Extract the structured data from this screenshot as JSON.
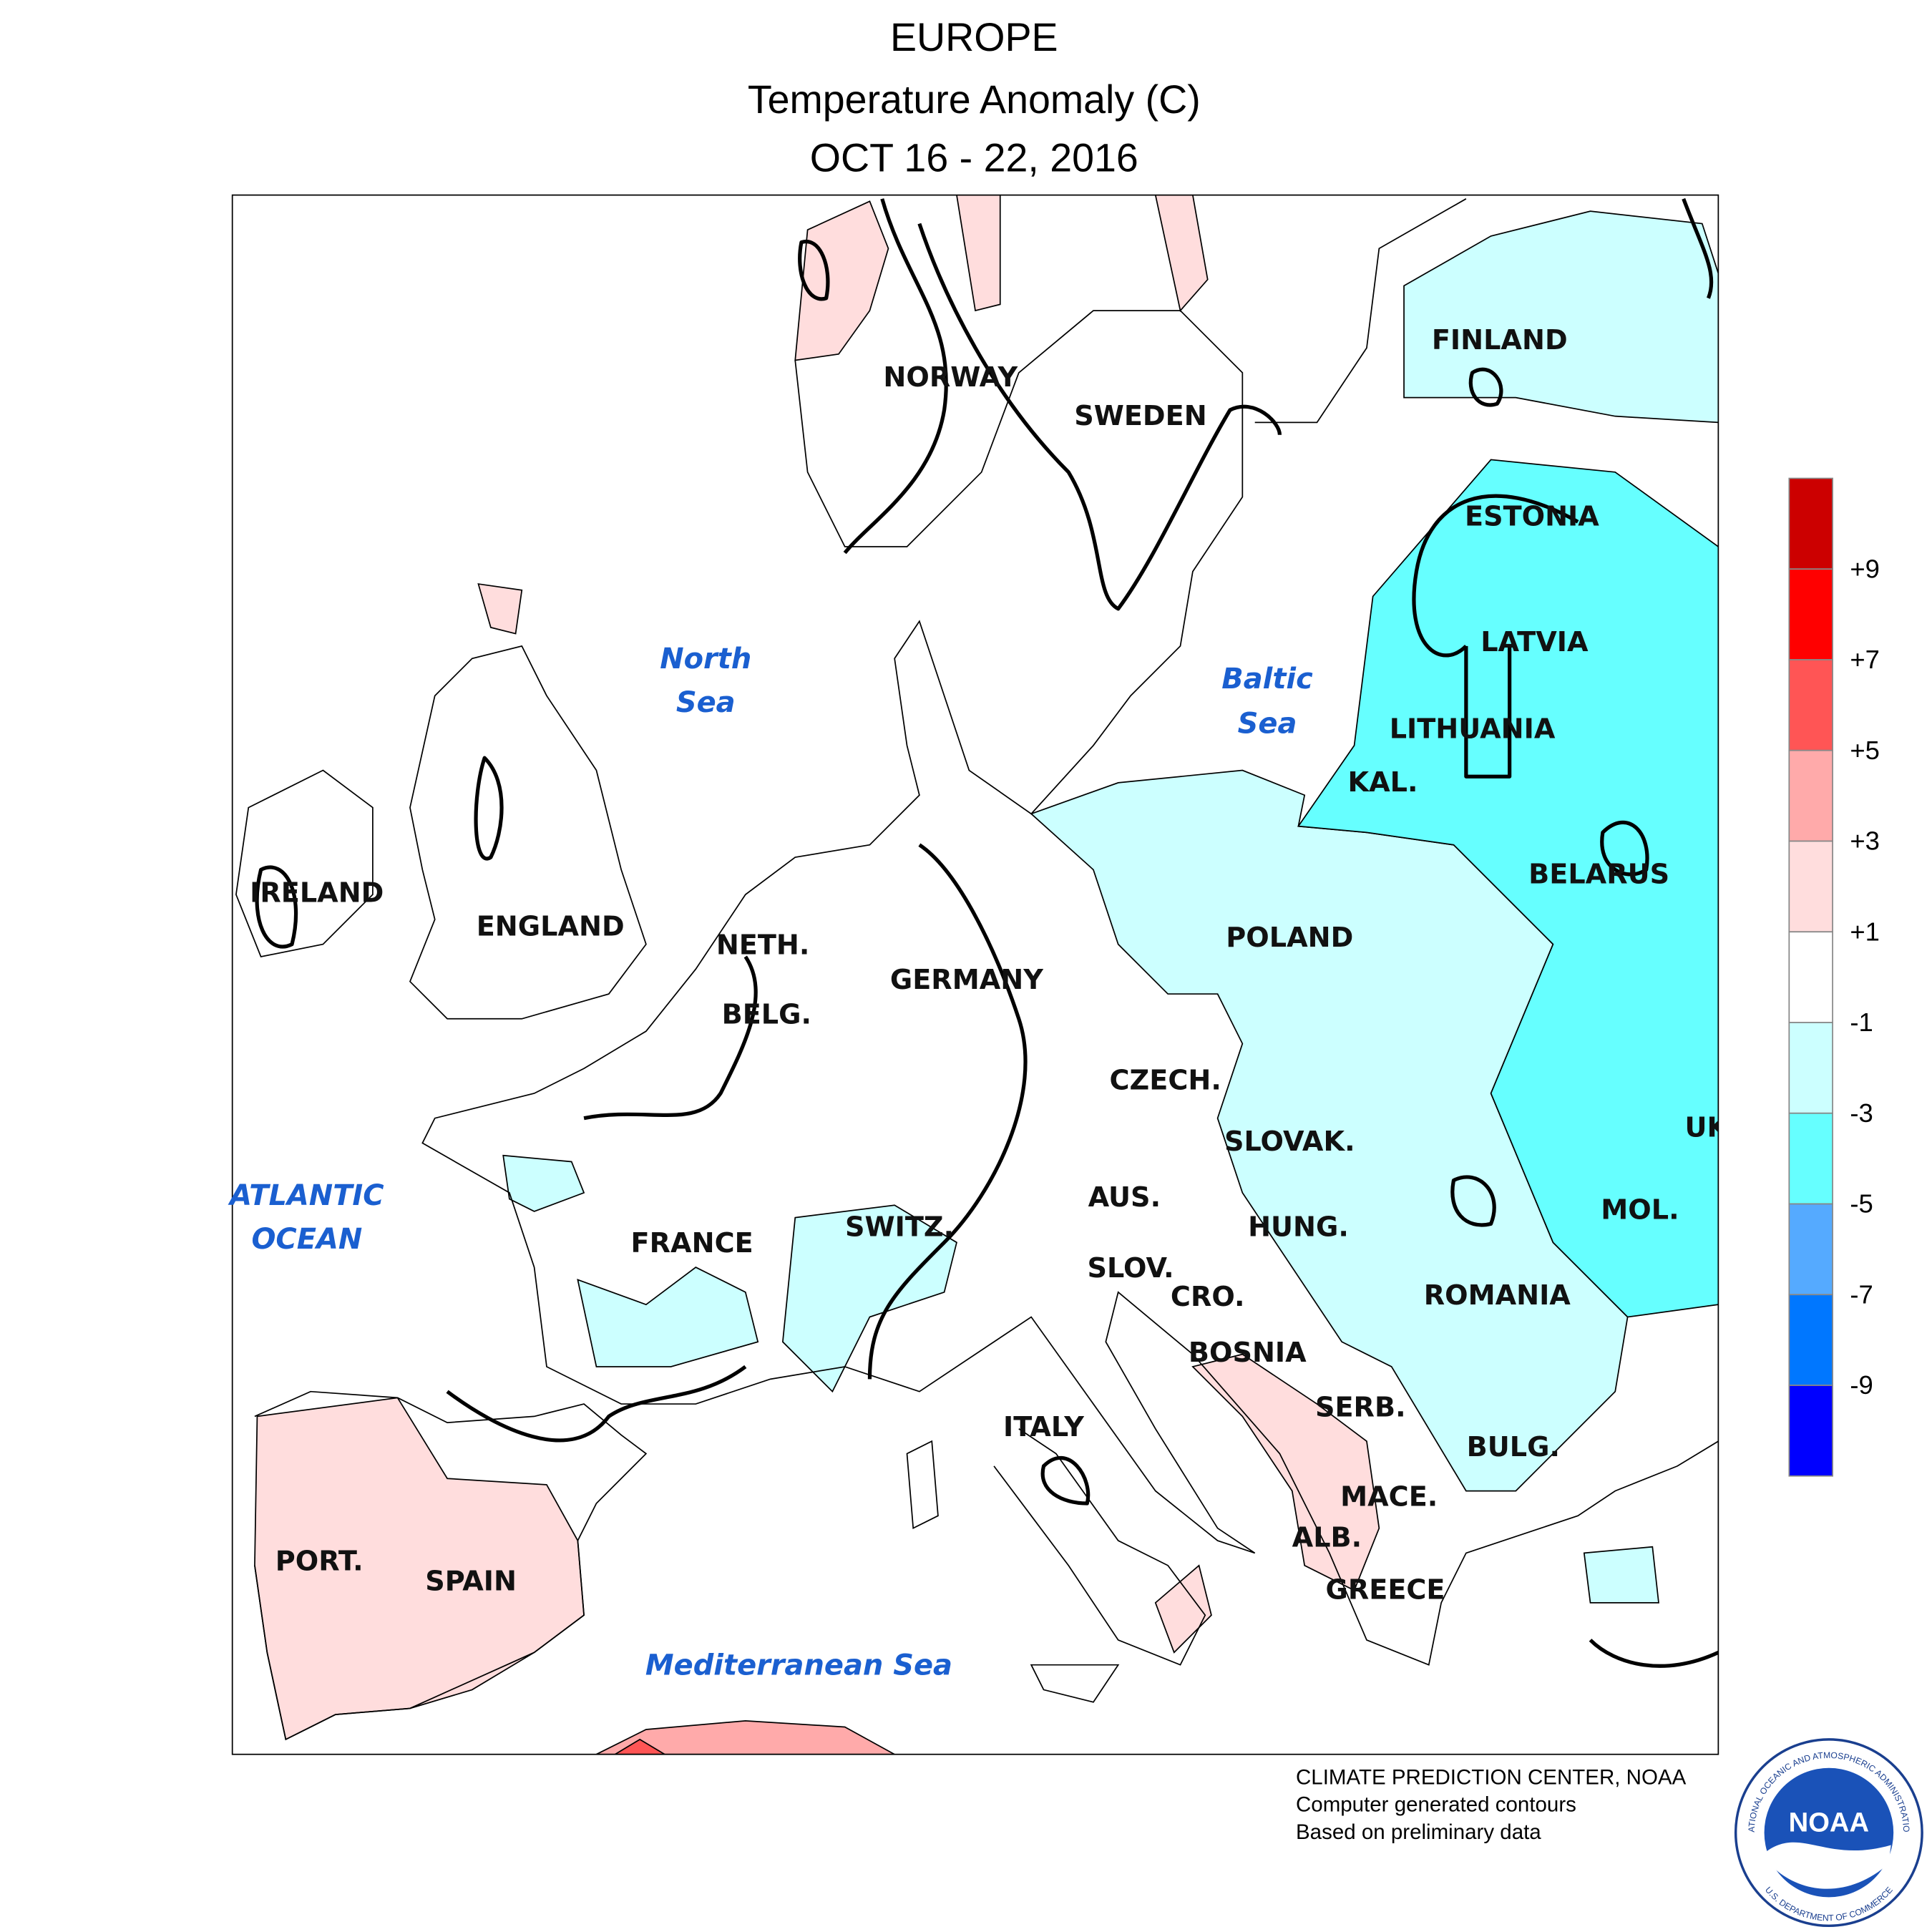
{
  "header": {
    "title": "EUROPE",
    "subtitle": "Temperature Anomaly (C)",
    "date": "OCT 16 - 22, 2016"
  },
  "map": {
    "countries": [
      "FINLAND",
      "NORWAY",
      "SWEDEN",
      "ESTONIA",
      "LATVIA",
      "LITHUANIA",
      "KAL.",
      "BELARUS",
      "POLAND",
      "IRELAND",
      "ENGLAND",
      "NETH.",
      "GERMANY",
      "BELG.",
      "CZECH.",
      "UK",
      "SLOVAK.",
      "AUS.",
      "MOL.",
      "HUNG.",
      "SWITZ.",
      "FRANCE",
      "SLOV.",
      "CRO.",
      "ROMANIA",
      "BOSNIA",
      "SERB.",
      "ITALY",
      "BULG.",
      "MACE.",
      "ALB.",
      "PORT.",
      "SPAIN",
      "GREECE"
    ],
    "seas": [
      [
        "North",
        "Sea"
      ],
      [
        "Baltic",
        "Sea"
      ],
      [
        "ATLANTIC",
        "OCEAN"
      ],
      [
        "Mediterranean Sea"
      ]
    ]
  },
  "legend": {
    "labels": [
      "+9",
      "+7",
      "+5",
      "+3",
      "+1",
      "-1",
      "-3",
      "-5",
      "-7",
      "-9"
    ],
    "colors": [
      "#cc0000",
      "#ff0000",
      "#ff5555",
      "#ffaaaa",
      "#ffdddd",
      "#ffffff",
      "#ccffff",
      "#66ffff",
      "#55aaff",
      "#0077ff",
      "#0000ff"
    ]
  },
  "credits": [
    "CLIMATE PREDICTION CENTER, NOAA",
    "Computer generated contours",
    "Based on preliminary data"
  ],
  "logo": {
    "text": "NOAA",
    "ring_top": "NATIONAL OCEANIC AND ATMOSPHERIC ADMINISTRATION",
    "ring_bottom": "U.S. DEPARTMENT OF COMMERCE"
  }
}
